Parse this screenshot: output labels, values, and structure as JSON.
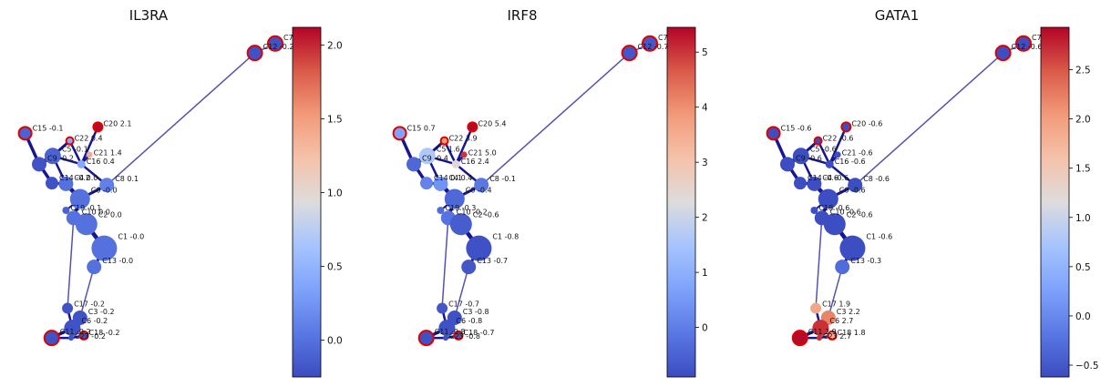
{
  "chart_data": [
    {
      "type": "scatter",
      "title": "IL3RA",
      "colorbar": {
        "min": -0.25,
        "max": 2.12,
        "ticks": [
          0.0,
          0.5,
          1.0,
          1.5,
          2.0
        ],
        "tick_labels": [
          "0.0",
          "0.5",
          "1.0",
          "1.5",
          "2.0"
        ]
      },
      "nodes": [
        {
          "id": "C7",
          "value": -0.2,
          "label": "C7 -",
          "x": 1.0,
          "y": 0.992,
          "size": 16,
          "highlight": true
        },
        {
          "id": "C12",
          "value": -0.2,
          "label": "C12 -0.2",
          "x": 0.92,
          "y": 0.962,
          "size": 16,
          "highlight": true
        },
        {
          "id": "C15",
          "value": -0.1,
          "label": "C15 -0.1",
          "x": 0.02,
          "y": 0.708,
          "size": 14,
          "highlight": true
        },
        {
          "id": "C20",
          "value": 2.1,
          "label": "C20 2.1",
          "x": 0.305,
          "y": 0.728,
          "size": 10,
          "highlight": true
        },
        {
          "id": "C22",
          "value": 0.4,
          "label": "C22 0.4",
          "x": 0.195,
          "y": 0.684,
          "size": 8,
          "highlight": true
        },
        {
          "id": "C21",
          "value": 1.4,
          "label": "C21 1.4",
          "x": 0.272,
          "y": 0.64,
          "size": 7,
          "highlight": false
        },
        {
          "id": "C5",
          "value": -0.1,
          "label": "C5 -0.1",
          "x": 0.128,
          "y": 0.636,
          "size": 18,
          "highlight": false
        },
        {
          "id": "C9",
          "value": -0.2,
          "label": "C9 -0.2",
          "x": 0.075,
          "y": 0.61,
          "size": 16,
          "highlight": false
        },
        {
          "id": "C16",
          "value": 0.4,
          "label": "C16 0.4",
          "x": 0.24,
          "y": 0.61,
          "size": 9,
          "highlight": false
        },
        {
          "id": "C14",
          "value": -0.2,
          "label": "C14 -0.2",
          "x": 0.125,
          "y": 0.55,
          "size": 14,
          "highlight": false
        },
        {
          "id": "C4",
          "value": 0.0,
          "label": "C4 0.0",
          "x": 0.18,
          "y": 0.548,
          "size": 16,
          "highlight": false
        },
        {
          "id": "C8",
          "value": 0.1,
          "label": "C8 0.1",
          "x": 0.34,
          "y": 0.544,
          "size": 16,
          "highlight": false
        },
        {
          "id": "C0",
          "value": 0.0,
          "label": "C0 -0.0",
          "x": 0.235,
          "y": 0.5,
          "size": 22,
          "highlight": false
        },
        {
          "id": "C19",
          "value": -0.1,
          "label": "C19 -0.1",
          "x": 0.18,
          "y": 0.464,
          "size": 8,
          "highlight": false
        },
        {
          "id": "C10",
          "value": 0.0,
          "label": "C10 0.0",
          "x": 0.21,
          "y": 0.44,
          "size": 16,
          "highlight": false
        },
        {
          "id": "C2",
          "value": 0.0,
          "label": "C2 0.0",
          "x": 0.26,
          "y": 0.42,
          "size": 24,
          "highlight": false
        },
        {
          "id": "C1",
          "value": 0.0,
          "label": "C1 -0.0",
          "x": 0.33,
          "y": 0.344,
          "size": 28,
          "highlight": false
        },
        {
          "id": "C13",
          "value": 0.0,
          "label": "C13 -0.0",
          "x": 0.29,
          "y": 0.285,
          "size": 16,
          "highlight": false
        },
        {
          "id": "C17",
          "value": -0.2,
          "label": "C17 -0.2",
          "x": 0.186,
          "y": 0.154,
          "size": 12,
          "highlight": false
        },
        {
          "id": "C3",
          "value": -0.2,
          "label": "C3 -0.2",
          "x": 0.235,
          "y": 0.124,
          "size": 16,
          "highlight": false
        },
        {
          "id": "C6",
          "value": -0.2,
          "label": "C6 -0.2",
          "x": 0.205,
          "y": 0.092,
          "size": 18,
          "highlight": false
        },
        {
          "id": "C11",
          "value": -0.2,
          "label": "C11 -0.2",
          "x": 0.124,
          "y": 0.06,
          "size": 16,
          "highlight": true
        },
        {
          "id": "C18",
          "value": -0.2,
          "label": "C18 -0.2",
          "x": 0.25,
          "y": 0.068,
          "size": 9,
          "highlight": true
        },
        {
          "id": "C23",
          "value": -0.2,
          "label": "C23 -0.2",
          "x": 0.2,
          "y": 0.06,
          "size": 6,
          "highlight": false
        }
      ]
    },
    {
      "type": "scatter",
      "title": "IRF8",
      "colorbar": {
        "min": -0.9,
        "max": 5.45,
        "ticks": [
          0,
          1,
          2,
          3,
          4,
          5
        ],
        "tick_labels": [
          "0",
          "1",
          "2",
          "3",
          "4",
          "5"
        ]
      },
      "nodes": [
        {
          "id": "C7",
          "value": -0.7,
          "label": "C7 -",
          "x": 1.0,
          "y": 0.992,
          "size": 16,
          "highlight": true
        },
        {
          "id": "C12",
          "value": -0.7,
          "label": "C12 -0.7",
          "x": 0.92,
          "y": 0.962,
          "size": 16,
          "highlight": true
        },
        {
          "id": "C15",
          "value": 0.7,
          "label": "C15 0.7",
          "x": 0.02,
          "y": 0.708,
          "size": 14,
          "highlight": true
        },
        {
          "id": "C20",
          "value": 5.4,
          "label": "C20 5.4",
          "x": 0.305,
          "y": 0.728,
          "size": 10,
          "highlight": true
        },
        {
          "id": "C22",
          "value": 3.9,
          "label": "C22 3.9",
          "x": 0.195,
          "y": 0.684,
          "size": 8,
          "highlight": true
        },
        {
          "id": "C21",
          "value": 5.0,
          "label": "C21 5.0",
          "x": 0.272,
          "y": 0.64,
          "size": 7,
          "highlight": false
        },
        {
          "id": "C5",
          "value": 1.6,
          "label": "C5 1.6",
          "x": 0.128,
          "y": 0.636,
          "size": 18,
          "highlight": false
        },
        {
          "id": "C9",
          "value": -0.4,
          "label": "C9 -0.4",
          "x": 0.075,
          "y": 0.61,
          "size": 16,
          "highlight": false
        },
        {
          "id": "C16",
          "value": 2.4,
          "label": "C16 2.4",
          "x": 0.24,
          "y": 0.61,
          "size": 9,
          "highlight": false
        },
        {
          "id": "C14",
          "value": 0.1,
          "label": "C14 0.1",
          "x": 0.125,
          "y": 0.55,
          "size": 14,
          "highlight": false
        },
        {
          "id": "C4",
          "value": 0.4,
          "label": "C4 0.4",
          "x": 0.18,
          "y": 0.548,
          "size": 16,
          "highlight": false
        },
        {
          "id": "C8",
          "value": -0.1,
          "label": "C8 -0.1",
          "x": 0.34,
          "y": 0.544,
          "size": 16,
          "highlight": false
        },
        {
          "id": "C0",
          "value": -0.4,
          "label": "C0 -0.4",
          "x": 0.235,
          "y": 0.5,
          "size": 22,
          "highlight": false
        },
        {
          "id": "C19",
          "value": -0.3,
          "label": "C19 -0.3",
          "x": 0.18,
          "y": 0.464,
          "size": 8,
          "highlight": false
        },
        {
          "id": "C10",
          "value": -0.2,
          "label": "C10 -0.2",
          "x": 0.21,
          "y": 0.44,
          "size": 16,
          "highlight": false
        },
        {
          "id": "C2",
          "value": -0.6,
          "label": "C2 -0.6",
          "x": 0.26,
          "y": 0.42,
          "size": 24,
          "highlight": false
        },
        {
          "id": "C1",
          "value": -0.8,
          "label": "C1 -0.8",
          "x": 0.33,
          "y": 0.344,
          "size": 28,
          "highlight": false
        },
        {
          "id": "C13",
          "value": -0.7,
          "label": "C13 -0.7",
          "x": 0.29,
          "y": 0.285,
          "size": 16,
          "highlight": false
        },
        {
          "id": "C17",
          "value": -0.7,
          "label": "C17 -0.7",
          "x": 0.186,
          "y": 0.154,
          "size": 12,
          "highlight": false
        },
        {
          "id": "C3",
          "value": -0.8,
          "label": "C3 -0.8",
          "x": 0.235,
          "y": 0.124,
          "size": 16,
          "highlight": false
        },
        {
          "id": "C6",
          "value": -0.8,
          "label": "C6 -0.8",
          "x": 0.205,
          "y": 0.092,
          "size": 18,
          "highlight": false
        },
        {
          "id": "C11",
          "value": -0.8,
          "label": "C11 -0.8",
          "x": 0.124,
          "y": 0.06,
          "size": 16,
          "highlight": true
        },
        {
          "id": "C18",
          "value": -0.7,
          "label": "C18 -0.7",
          "x": 0.25,
          "y": 0.068,
          "size": 9,
          "highlight": true
        },
        {
          "id": "C23",
          "value": -0.8,
          "label": "C23 -0.8",
          "x": 0.2,
          "y": 0.06,
          "size": 6,
          "highlight": false
        }
      ]
    },
    {
      "type": "scatter",
      "title": "GATA1",
      "colorbar": {
        "min": -0.62,
        "max": 2.93,
        "ticks": [
          -0.5,
          0.0,
          0.5,
          1.0,
          1.5,
          2.0,
          2.5
        ],
        "tick_labels": [
          "−0.5",
          "0.0",
          "0.5",
          "1.0",
          "1.5",
          "2.0",
          "2.5"
        ]
      },
      "nodes": [
        {
          "id": "C7",
          "value": -0.6,
          "label": "C7 -",
          "x": 1.0,
          "y": 0.992,
          "size": 16,
          "highlight": true
        },
        {
          "id": "C12",
          "value": -0.6,
          "label": "C12 -0.6",
          "x": 0.92,
          "y": 0.962,
          "size": 16,
          "highlight": true
        },
        {
          "id": "C15",
          "value": -0.6,
          "label": "C15 -0.6",
          "x": 0.02,
          "y": 0.708,
          "size": 14,
          "highlight": true
        },
        {
          "id": "C20",
          "value": -0.6,
          "label": "C20 -0.6",
          "x": 0.305,
          "y": 0.728,
          "size": 10,
          "highlight": true
        },
        {
          "id": "C22",
          "value": -0.6,
          "label": "C22 -0.6",
          "x": 0.195,
          "y": 0.684,
          "size": 8,
          "highlight": true
        },
        {
          "id": "C21",
          "value": -0.6,
          "label": "C21 -0.6",
          "x": 0.272,
          "y": 0.64,
          "size": 7,
          "highlight": false
        },
        {
          "id": "C5",
          "value": -0.6,
          "label": "C5 -0.6",
          "x": 0.128,
          "y": 0.636,
          "size": 18,
          "highlight": false
        },
        {
          "id": "C9",
          "value": -0.6,
          "label": "C9 -0.6",
          "x": 0.075,
          "y": 0.61,
          "size": 16,
          "highlight": false
        },
        {
          "id": "C16",
          "value": -0.6,
          "label": "C16 -0.6",
          "x": 0.24,
          "y": 0.61,
          "size": 9,
          "highlight": false
        },
        {
          "id": "C14",
          "value": -0.6,
          "label": "C14 -0.6",
          "x": 0.125,
          "y": 0.55,
          "size": 14,
          "highlight": false
        },
        {
          "id": "C4",
          "value": -0.6,
          "label": "C4 -0.6",
          "x": 0.18,
          "y": 0.548,
          "size": 16,
          "highlight": false
        },
        {
          "id": "C8",
          "value": -0.6,
          "label": "C8 -0.6",
          "x": 0.34,
          "y": 0.544,
          "size": 16,
          "highlight": false
        },
        {
          "id": "C0",
          "value": -0.6,
          "label": "C0 -0.6",
          "x": 0.235,
          "y": 0.5,
          "size": 22,
          "highlight": false
        },
        {
          "id": "C19",
          "value": -0.6,
          "label": "C19 -0.6",
          "x": 0.18,
          "y": 0.464,
          "size": 8,
          "highlight": false
        },
        {
          "id": "C10",
          "value": -0.6,
          "label": "C10 -0.6",
          "x": 0.21,
          "y": 0.44,
          "size": 16,
          "highlight": false
        },
        {
          "id": "C2",
          "value": -0.6,
          "label": "C2 -0.6",
          "x": 0.26,
          "y": 0.42,
          "size": 24,
          "highlight": false
        },
        {
          "id": "C1",
          "value": -0.6,
          "label": "C1 -0.6",
          "x": 0.33,
          "y": 0.344,
          "size": 28,
          "highlight": false
        },
        {
          "id": "C13",
          "value": -0.3,
          "label": "C13 -0.3",
          "x": 0.29,
          "y": 0.285,
          "size": 16,
          "highlight": false
        },
        {
          "id": "C17",
          "value": 1.9,
          "label": "C17 1.9",
          "x": 0.186,
          "y": 0.154,
          "size": 12,
          "highlight": false
        },
        {
          "id": "C3",
          "value": 2.2,
          "label": "C3 2.2",
          "x": 0.235,
          "y": 0.124,
          "size": 16,
          "highlight": false
        },
        {
          "id": "C6",
          "value": 2.7,
          "label": "C6 2.7",
          "x": 0.205,
          "y": 0.092,
          "size": 18,
          "highlight": false
        },
        {
          "id": "C11",
          "value": 2.9,
          "label": "C11 2.9",
          "x": 0.124,
          "y": 0.06,
          "size": 16,
          "highlight": true
        },
        {
          "id": "C18",
          "value": 1.8,
          "label": "C18 1.8",
          "x": 0.25,
          "y": 0.068,
          "size": 9,
          "highlight": true
        },
        {
          "id": "C23",
          "value": 2.7,
          "label": "C23 2.7",
          "x": 0.2,
          "y": 0.06,
          "size": 6,
          "highlight": false
        }
      ]
    }
  ],
  "edges": [
    {
      "from": "C12",
      "to": "C8",
      "weight": 1.5
    },
    {
      "from": "C12",
      "to": "C7",
      "weight": 1.5
    },
    {
      "from": "C15",
      "to": "C9",
      "weight": 3.5
    },
    {
      "from": "C9",
      "to": "C5",
      "weight": 4.5
    },
    {
      "from": "C9",
      "to": "C14",
      "weight": 3.5
    },
    {
      "from": "C5",
      "to": "C22",
      "weight": 3
    },
    {
      "from": "C5",
      "to": "C16",
      "weight": 2.5
    },
    {
      "from": "C5",
      "to": "C4",
      "weight": 2.5
    },
    {
      "from": "C22",
      "to": "C16",
      "weight": 2.5
    },
    {
      "from": "C16",
      "to": "C21",
      "weight": 2.5
    },
    {
      "from": "C16",
      "to": "C20",
      "weight": 2.5
    },
    {
      "from": "C16",
      "to": "C8",
      "weight": 2.5
    },
    {
      "from": "C14",
      "to": "C4",
      "weight": 3
    },
    {
      "from": "C4",
      "to": "C0",
      "weight": 4.5
    },
    {
      "from": "C0",
      "to": "C8",
      "weight": 3
    },
    {
      "from": "C0",
      "to": "C19",
      "weight": 2
    },
    {
      "from": "C0",
      "to": "C10",
      "weight": 3.5
    },
    {
      "from": "C10",
      "to": "C2",
      "weight": 4
    },
    {
      "from": "C2",
      "to": "C1",
      "weight": 4.5
    },
    {
      "from": "C1",
      "to": "C13",
      "weight": 3
    },
    {
      "from": "C13",
      "to": "C3",
      "weight": 1.5
    },
    {
      "from": "C10",
      "to": "C17",
      "weight": 1.5
    },
    {
      "from": "C17",
      "to": "C6",
      "weight": 2.5
    },
    {
      "from": "C3",
      "to": "C6",
      "weight": 4
    },
    {
      "from": "C6",
      "to": "C11",
      "weight": 3.5
    },
    {
      "from": "C6",
      "to": "C23",
      "weight": 2.5
    },
    {
      "from": "C11",
      "to": "C23",
      "weight": 2.5
    },
    {
      "from": "C23",
      "to": "C18",
      "weight": 2.5
    }
  ],
  "colormap": {
    "name": "coolwarm",
    "stops": [
      "#3b4cc0",
      "#6788ee",
      "#9abbff",
      "#c9d7f0",
      "#dddddd",
      "#f6d0c0",
      "#f7a789",
      "#e36a53",
      "#b40426"
    ]
  },
  "highlight_color": "#e00000",
  "edge_color": "#0a0a8c"
}
